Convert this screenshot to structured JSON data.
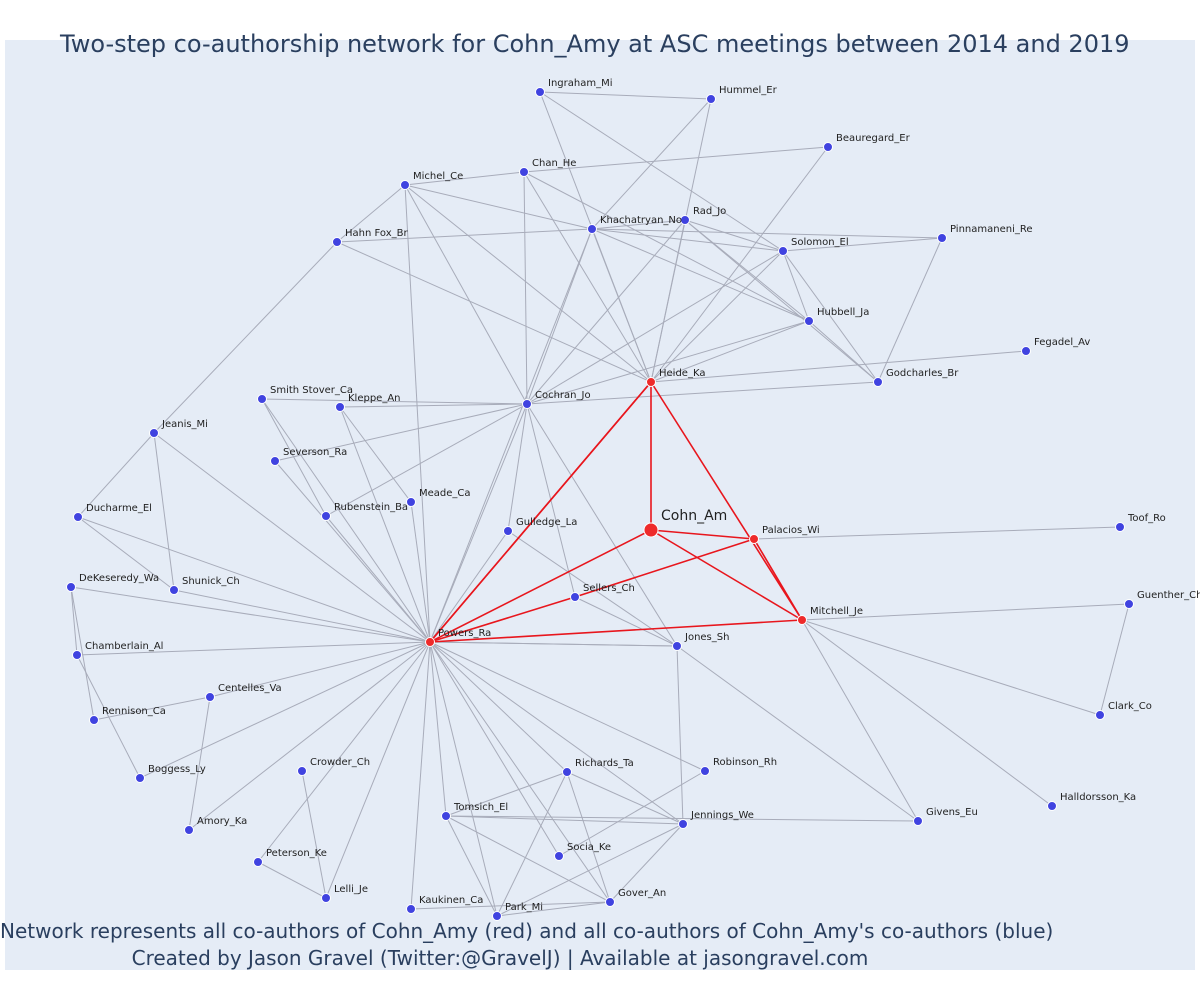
{
  "title": "Two-step co-authorship network for Cohn_Amy at ASC meetings between 2014 and 2019",
  "caption_line1": "Network represents all co-authors of Cohn_Amy (red) and all co-authors of Cohn_Amy's co-authors (blue)",
  "caption_line2": "Created by Jason Gravel (Twitter:@GravelJ) | Available at jasongravel.com",
  "colors": {
    "plot_bg": "#e5ecf6",
    "primary_node": "#ee2a2a",
    "secondary_node": "#4043e0",
    "primary_edge": "#e8161d",
    "secondary_edge": "#a8acba",
    "title_text": "#2a3f5f"
  },
  "ego": "Cohn_Am",
  "nodes": [
    {
      "id": "Cohn_Am",
      "type": "ego"
    },
    {
      "id": "Heide_Ka",
      "type": "primary"
    },
    {
      "id": "Powers_Ra",
      "type": "primary"
    },
    {
      "id": "Palacios_Wi",
      "type": "primary"
    },
    {
      "id": "Mitchell_Je",
      "type": "primary"
    },
    {
      "id": "Ingraham_Mi",
      "type": "secondary"
    },
    {
      "id": "Hummel_Er",
      "type": "secondary"
    },
    {
      "id": "Beauregard_Er",
      "type": "secondary"
    },
    {
      "id": "Chan_He",
      "type": "secondary"
    },
    {
      "id": "Michel_Ce",
      "type": "secondary"
    },
    {
      "id": "Khachatryan_No",
      "type": "secondary"
    },
    {
      "id": "Rad_Jo",
      "type": "secondary"
    },
    {
      "id": "Hahn Fox_Br",
      "type": "secondary"
    },
    {
      "id": "Pinnamaneni_Re",
      "type": "secondary"
    },
    {
      "id": "Solomon_El",
      "type": "secondary"
    },
    {
      "id": "Hubbell_Ja",
      "type": "secondary"
    },
    {
      "id": "Fegadel_Av",
      "type": "secondary"
    },
    {
      "id": "Godcharles_Br",
      "type": "secondary"
    },
    {
      "id": "Cochran_Jo",
      "type": "secondary"
    },
    {
      "id": "Smith Stover_Ca",
      "type": "secondary"
    },
    {
      "id": "Kleppe_An",
      "type": "secondary"
    },
    {
      "id": "Jeanis_Mi",
      "type": "secondary"
    },
    {
      "id": "Severson_Ra",
      "type": "secondary"
    },
    {
      "id": "Meade_Ca",
      "type": "secondary"
    },
    {
      "id": "Rubenstein_Ba",
      "type": "secondary"
    },
    {
      "id": "Ducharme_El",
      "type": "secondary"
    },
    {
      "id": "Gulledge_La",
      "type": "secondary"
    },
    {
      "id": "Toof_Ro",
      "type": "secondary"
    },
    {
      "id": "DeKeseredy_Wa",
      "type": "secondary"
    },
    {
      "id": "Shunick_Ch",
      "type": "secondary"
    },
    {
      "id": "Sellers_Ch",
      "type": "secondary"
    },
    {
      "id": "Guenther_Ch",
      "type": "secondary"
    },
    {
      "id": "Chamberlain_Al",
      "type": "secondary"
    },
    {
      "id": "Jones_Sh",
      "type": "secondary"
    },
    {
      "id": "Centelles_Va",
      "type": "secondary"
    },
    {
      "id": "Rennison_Ca",
      "type": "secondary"
    },
    {
      "id": "Clark_Co",
      "type": "secondary"
    },
    {
      "id": "Boggess_Ly",
      "type": "secondary"
    },
    {
      "id": "Crowder_Ch",
      "type": "secondary"
    },
    {
      "id": "Richards_Ta",
      "type": "secondary"
    },
    {
      "id": "Robinson_Rh",
      "type": "secondary"
    },
    {
      "id": "Halldorsson_Ka",
      "type": "secondary"
    },
    {
      "id": "Tomsich_El",
      "type": "secondary"
    },
    {
      "id": "Jennings_We",
      "type": "secondary"
    },
    {
      "id": "Givens_Eu",
      "type": "secondary"
    },
    {
      "id": "Amory_Ka",
      "type": "secondary"
    },
    {
      "id": "Socia_Ke",
      "type": "secondary"
    },
    {
      "id": "Peterson_Ke",
      "type": "secondary"
    },
    {
      "id": "Gover_An",
      "type": "secondary"
    },
    {
      "id": "Lelli_Je",
      "type": "secondary"
    },
    {
      "id": "Kaukinen_Ca",
      "type": "secondary"
    },
    {
      "id": "Park_Mi",
      "type": "secondary"
    }
  ],
  "edges": [
    [
      "Cohn_Am",
      "Heide_Ka"
    ],
    [
      "Cohn_Am",
      "Powers_Ra"
    ],
    [
      "Cohn_Am",
      "Palacios_Wi"
    ],
    [
      "Cohn_Am",
      "Mitchell_Je"
    ],
    [
      "Heide_Ka",
      "Powers_Ra"
    ],
    [
      "Heide_Ka",
      "Mitchell_Je"
    ],
    [
      "Palacios_Wi",
      "Sellers_Ch"
    ],
    [
      "Powers_Ra",
      "Sellers_Ch"
    ],
    [
      "Powers_Ra",
      "Mitchell_Je"
    ],
    [
      "Ingraham_Mi",
      "Hummel_Er"
    ],
    [
      "Ingraham_Mi",
      "Heide_Ka"
    ],
    [
      "Ingraham_Mi",
      "Solomon_El"
    ],
    [
      "Hummel_Er",
      "Khachatryan_No"
    ],
    [
      "Hummel_Er",
      "Heide_Ka"
    ],
    [
      "Beauregard_Er",
      "Chan_He"
    ],
    [
      "Beauregard_Er",
      "Heide_Ka"
    ],
    [
      "Chan_He",
      "Michel_Ce"
    ],
    [
      "Chan_He",
      "Cochran_Jo"
    ],
    [
      "Chan_He",
      "Heide_Ka"
    ],
    [
      "Chan_He",
      "Hubbell_Ja"
    ],
    [
      "Michel_Ce",
      "Hahn Fox_Br"
    ],
    [
      "Michel_Ce",
      "Khachatryan_No"
    ],
    [
      "Michel_Ce",
      "Cochran_Jo"
    ],
    [
      "Michel_Ce",
      "Heide_Ka"
    ],
    [
      "Michel_Ce",
      "Powers_Ra"
    ],
    [
      "Khachatryan_No",
      "Hahn Fox_Br"
    ],
    [
      "Khachatryan_No",
      "Rad_Jo"
    ],
    [
      "Khachatryan_No",
      "Solomon_El"
    ],
    [
      "Khachatryan_No",
      "Cochran_Jo"
    ],
    [
      "Khachatryan_No",
      "Heide_Ka"
    ],
    [
      "Khachatryan_No",
      "Hubbell_Ja"
    ],
    [
      "Khachatryan_No",
      "Powers_Ra"
    ],
    [
      "Khachatryan_No",
      "Pinnamaneni_Re"
    ],
    [
      "Rad_Jo",
      "Solomon_El"
    ],
    [
      "Rad_Jo",
      "Hubbell_Ja"
    ],
    [
      "Rad_Jo",
      "Godcharles_Br"
    ],
    [
      "Rad_Jo",
      "Cochran_Jo"
    ],
    [
      "Rad_Jo",
      "Heide_Ka"
    ],
    [
      "Hahn Fox_Br",
      "Heide_Ka"
    ],
    [
      "Hahn Fox_Br",
      "Jeanis_Mi"
    ],
    [
      "Pinnamaneni_Re",
      "Solomon_El"
    ],
    [
      "Pinnamaneni_Re",
      "Godcharles_Br"
    ],
    [
      "Solomon_El",
      "Hubbell_Ja"
    ],
    [
      "Solomon_El",
      "Godcharles_Br"
    ],
    [
      "Solomon_El",
      "Cochran_Jo"
    ],
    [
      "Solomon_El",
      "Heide_Ka"
    ],
    [
      "Hubbell_Ja",
      "Godcharles_Br"
    ],
    [
      "Hubbell_Ja",
      "Cochran_Jo"
    ],
    [
      "Hubbell_Ja",
      "Heide_Ka"
    ],
    [
      "Fegadel_Av",
      "Heide_Ka"
    ],
    [
      "Godcharles_Br",
      "Cochran_Jo"
    ],
    [
      "Cochran_Jo",
      "Smith Stover_Ca"
    ],
    [
      "Cochran_Jo",
      "Kleppe_An"
    ],
    [
      "Cochran_Jo",
      "Severson_Ra"
    ],
    [
      "Cochran_Jo",
      "Rubenstein_Ba"
    ],
    [
      "Cochran_Jo",
      "Gulledge_La"
    ],
    [
      "Cochran_Jo",
      "Sellers_Ch"
    ],
    [
      "Cochran_Jo",
      "Jones_Sh"
    ],
    [
      "Cochran_Jo",
      "Powers_Ra"
    ],
    [
      "Smith Stover_Ca",
      "Rubenstein_Ba"
    ],
    [
      "Smith Stover_Ca",
      "Powers_Ra"
    ],
    [
      "Kleppe_An",
      "Meade_Ca"
    ],
    [
      "Kleppe_An",
      "Powers_Ra"
    ],
    [
      "Severson_Ra",
      "Powers_Ra"
    ],
    [
      "Rubenstein_Ba",
      "Powers_Ra"
    ],
    [
      "Meade_Ca",
      "Powers_Ra"
    ],
    [
      "Jeanis_Mi",
      "Ducharme_El"
    ],
    [
      "Jeanis_Mi",
      "Shunick_Ch"
    ],
    [
      "Jeanis_Mi",
      "Powers_Ra"
    ],
    [
      "Ducharme_El",
      "Shunick_Ch"
    ],
    [
      "Ducharme_El",
      "Powers_Ra"
    ],
    [
      "DeKeseredy_Wa",
      "Chamberlain_Al"
    ],
    [
      "DeKeseredy_Wa",
      "Powers_Ra"
    ],
    [
      "DeKeseredy_Wa",
      "Rennison_Ca"
    ],
    [
      "Chamberlain_Al",
      "Powers_Ra"
    ],
    [
      "Chamberlain_Al",
      "Boggess_Ly"
    ],
    [
      "Shunick_Ch",
      "Powers_Ra"
    ],
    [
      "Gulledge_La",
      "Powers_Ra"
    ],
    [
      "Gulledge_La",
      "Jones_Sh"
    ],
    [
      "Sellers_Ch",
      "Jones_Sh"
    ],
    [
      "Jones_Sh",
      "Jennings_We"
    ],
    [
      "Jones_Sh",
      "Powers_Ra"
    ],
    [
      "Centelles_Va",
      "Rennison_Ca"
    ],
    [
      "Centelles_Va",
      "Amory_Ka"
    ],
    [
      "Centelles_Va",
      "Powers_Ra"
    ],
    [
      "Boggess_Ly",
      "Powers_Ra"
    ],
    [
      "Amory_Ka",
      "Powers_Ra"
    ],
    [
      "Crowder_Ch",
      "Lelli_Je"
    ],
    [
      "Peterson_Ke",
      "Powers_Ra"
    ],
    [
      "Peterson_Ke",
      "Lelli_Je"
    ],
    [
      "Lelli_Je",
      "Powers_Ra"
    ],
    [
      "Palacios_Wi",
      "Toof_Ro"
    ],
    [
      "Mitchell_Je",
      "Guenther_Ch"
    ],
    [
      "Mitchell_Je",
      "Clark_Co"
    ],
    [
      "Mitchell_Je",
      "Halldorsson_Ka"
    ],
    [
      "Mitchell_Je",
      "Givens_Eu"
    ],
    [
      "Guenther_Ch",
      "Clark_Co"
    ],
    [
      "Jones_Sh",
      "Givens_Eu"
    ],
    [
      "Richards_Ta",
      "Tomsich_El"
    ],
    [
      "Richards_Ta",
      "Jennings_We"
    ],
    [
      "Richards_Ta",
      "Gover_An"
    ],
    [
      "Richards_Ta",
      "Park_Mi"
    ],
    [
      "Richards_Ta",
      "Powers_Ra"
    ],
    [
      "Robinson_Rh",
      "Socia_Ke"
    ],
    [
      "Tomsich_El",
      "Jennings_We"
    ],
    [
      "Tomsich_El",
      "Gover_An"
    ],
    [
      "Tomsich_El",
      "Park_Mi"
    ],
    [
      "Tomsich_El",
      "Givens_Eu"
    ],
    [
      "Tomsich_El",
      "Powers_Ra"
    ],
    [
      "Jennings_We",
      "Gover_An"
    ],
    [
      "Jennings_We",
      "Park_Mi"
    ],
    [
      "Jennings_We",
      "Powers_Ra"
    ],
    [
      "Socia_Ke",
      "Powers_Ra"
    ],
    [
      "Gover_An",
      "Powers_Ra"
    ],
    [
      "Kaukinen_Ca",
      "Powers_Ra"
    ],
    [
      "Kaukinen_Ca",
      "Gover_An"
    ],
    [
      "Park_Mi",
      "Powers_Ra"
    ],
    [
      "Park_Mi",
      "Gover_An"
    ],
    [
      "Heide_Ka",
      "Powers_Ra"
    ],
    [
      "Powers_Ra",
      "Robinson_Rh"
    ],
    [
      "Powers_Ra",
      "Jones_Sh"
    ]
  ]
}
